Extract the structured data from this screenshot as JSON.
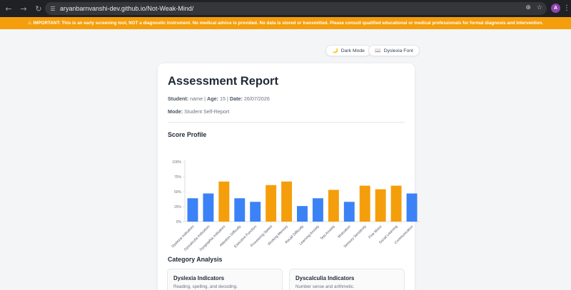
{
  "browser": {
    "url_domain": "aryanbarnvanshi-dev.github.io",
    "url_path": "/Not-Weak-Mind/",
    "profile_initial": "A"
  },
  "banner": {
    "icon": "warning-icon",
    "text": "IMPORTANT: This is an early screening tool, NOT a diagnostic instrument. No medical advice is provided. No data is stored or transmitted. Please consult qualified educational or medical professionals for formal diagnosis and intervention."
  },
  "toolbar": {
    "dark_mode": {
      "icon": "moon-icon",
      "label": "Dark Mode"
    },
    "dyslexia_font": {
      "icon": "book-icon",
      "label": "Dyslexia Font"
    }
  },
  "report": {
    "title": "Assessment Report",
    "student_label": "Student:",
    "student_value": "name",
    "sep1": "|",
    "age_label": "Age:",
    "age_value": "15",
    "sep2": "|",
    "date_label": "Date:",
    "date_value": "26/07/2026",
    "mode_label": "Mode:",
    "mode_value": "Student Self-Report",
    "score_profile_heading": "Score Profile",
    "category_heading": "Category Analysis"
  },
  "chart_data": {
    "type": "bar",
    "categories": [
      "Dyslexia Indicators",
      "Dyscalculia Indicators",
      "Dysgraphia Indicators",
      "Attention Difficulty",
      "Executive Function",
      "Processing Speed",
      "Working Memory",
      "Recall Difficulty",
      "Learning Anxiety",
      "Test Anxiety",
      "Motivation",
      "Sensory Sensitivity",
      "Fine Motor",
      "Social Learning",
      "Communication"
    ],
    "values": [
      39,
      47,
      67,
      39,
      33,
      61,
      67,
      26,
      39,
      53,
      33,
      60,
      54,
      60,
      47
    ],
    "bar_colors": [
      "#3b82f6",
      "#3b82f6",
      "#f59e0b",
      "#3b82f6",
      "#3b82f6",
      "#f59e0b",
      "#f59e0b",
      "#3b82f6",
      "#3b82f6",
      "#f59e0b",
      "#3b82f6",
      "#f59e0b",
      "#f59e0b",
      "#f59e0b",
      "#3b82f6"
    ],
    "yticks": [
      "0%",
      "25%",
      "50%",
      "75%",
      "100%"
    ],
    "ylim": [
      0,
      100
    ],
    "grid": false,
    "title": "",
    "xlabel": "",
    "ylabel": ""
  },
  "categories_cards": [
    {
      "title": "Dyslexia Indicators",
      "desc": "Reading, spelling, and decoding."
    },
    {
      "title": "Dyscalculia Indicators",
      "desc": "Number sense and arithmetic."
    }
  ]
}
